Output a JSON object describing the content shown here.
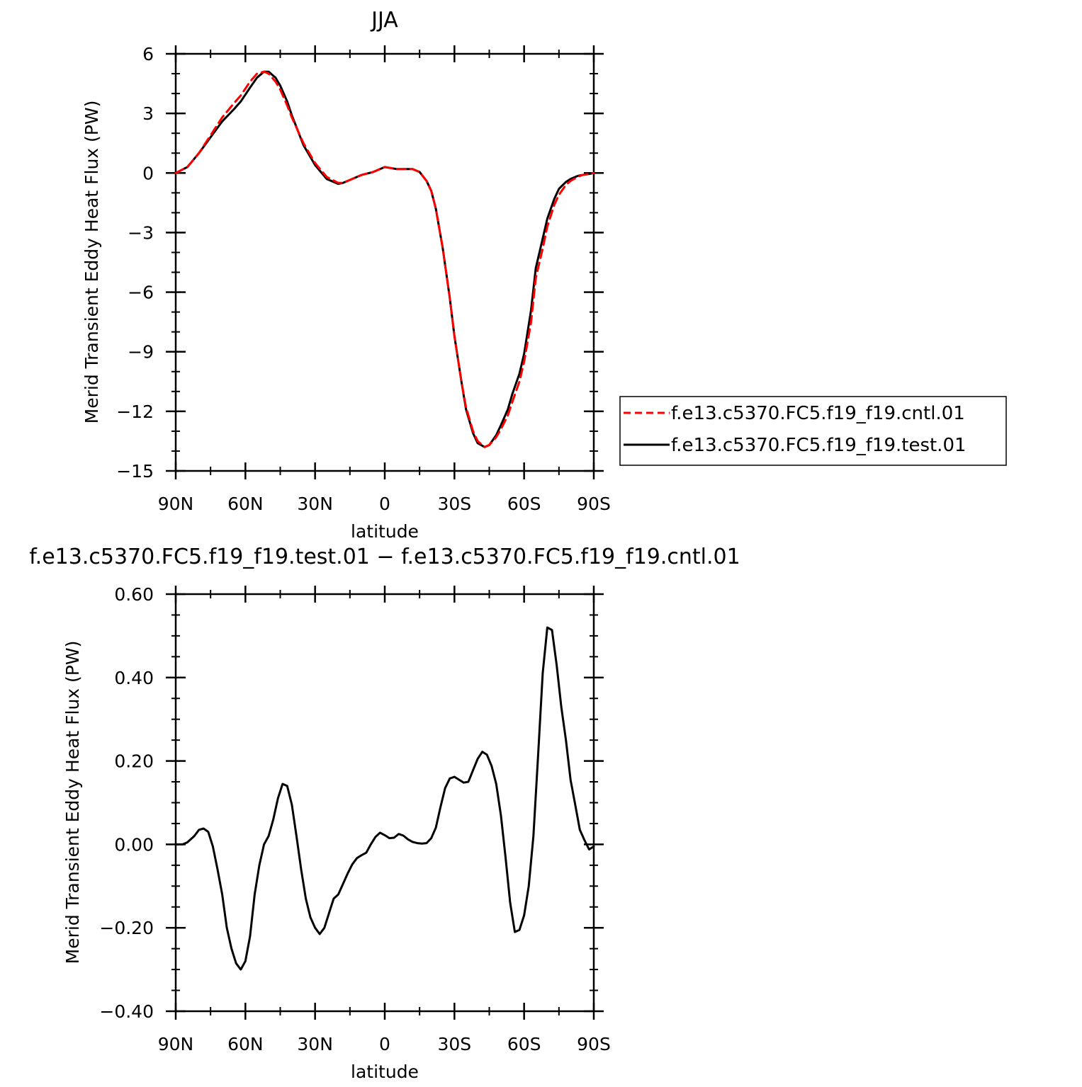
{
  "chart_data": [
    {
      "type": "line",
      "title": "JJA",
      "xlabel": "latitude",
      "ylabel": "Merid Transient Eddy Heat Flux (PW)",
      "xlim": [
        -90,
        90
      ],
      "ylim": [
        -15,
        6
      ],
      "x_ticks": [
        -90,
        -60,
        -30,
        0,
        30,
        60,
        90
      ],
      "x_tick_labels": [
        "90N",
        "60N",
        "30N",
        "0",
        "30S",
        "60S",
        "90S"
      ],
      "y_ticks": [
        6,
        3,
        0,
        -3,
        -6,
        -9,
        -12,
        -15
      ],
      "y_tick_labels": [
        "6",
        "3",
        "0",
        "−3",
        "−6",
        "−9",
        "−12",
        "−15"
      ],
      "legend_position": "right",
      "grid": false,
      "series": [
        {
          "name": "f.e13.c5370.FC5.f19_f19.cntl.01",
          "color": "#ff0000",
          "dash": "dashed",
          "x": [
            -90,
            -85,
            -80,
            -75,
            -70,
            -65,
            -62,
            -58,
            -55,
            -52,
            -50,
            -47,
            -45,
            -42,
            -40,
            -35,
            -30,
            -25,
            -20,
            -18,
            -15,
            -10,
            -5,
            0,
            5,
            10,
            12,
            15,
            18,
            20,
            22,
            25,
            28,
            30,
            33,
            35,
            38,
            40,
            43,
            45,
            48,
            50,
            53,
            55,
            58,
            60,
            63,
            65,
            68,
            70,
            73,
            75,
            78,
            80,
            83,
            85,
            88,
            90
          ],
          "y": [
            0,
            0.3,
            1.0,
            1.9,
            2.8,
            3.5,
            3.9,
            4.6,
            5.0,
            5.1,
            5.0,
            4.6,
            4.2,
            3.4,
            2.8,
            1.5,
            0.5,
            -0.2,
            -0.5,
            -0.5,
            -0.35,
            -0.1,
            0.05,
            0.3,
            0.2,
            0.2,
            0.2,
            0.05,
            -0.4,
            -0.9,
            -1.8,
            -3.8,
            -6.3,
            -8.2,
            -10.5,
            -11.8,
            -13.0,
            -13.5,
            -13.8,
            -13.7,
            -13.3,
            -12.9,
            -12.2,
            -11.5,
            -10.5,
            -9.5,
            -7.5,
            -5.3,
            -3.8,
            -2.7,
            -1.6,
            -1.1,
            -0.6,
            -0.4,
            -0.2,
            -0.1,
            -0.05,
            0
          ]
        },
        {
          "name": "f.e13.c5370.FC5.f19_f19.test.01",
          "color": "#000000",
          "dash": "solid",
          "x": [
            -90,
            -85,
            -80,
            -75,
            -70,
            -65,
            -62,
            -58,
            -55,
            -52,
            -50,
            -47,
            -45,
            -42,
            -40,
            -35,
            -30,
            -25,
            -20,
            -18,
            -15,
            -10,
            -5,
            0,
            5,
            10,
            12,
            15,
            18,
            20,
            22,
            25,
            28,
            30,
            33,
            35,
            38,
            40,
            43,
            45,
            48,
            50,
            53,
            55,
            58,
            60,
            63,
            65,
            68,
            70,
            73,
            75,
            78,
            80,
            83,
            85,
            88,
            90
          ],
          "y": [
            0,
            0.3,
            1.0,
            1.8,
            2.6,
            3.2,
            3.6,
            4.3,
            4.8,
            5.1,
            5.1,
            4.8,
            4.4,
            3.6,
            2.9,
            1.4,
            0.4,
            -0.3,
            -0.55,
            -0.5,
            -0.35,
            -0.1,
            0.05,
            0.3,
            0.2,
            0.2,
            0.2,
            0.05,
            -0.4,
            -0.9,
            -1.8,
            -3.8,
            -6.3,
            -8.2,
            -10.5,
            -11.9,
            -13.1,
            -13.6,
            -13.8,
            -13.7,
            -13.2,
            -12.7,
            -11.9,
            -11.1,
            -10.1,
            -9.1,
            -6.9,
            -4.8,
            -3.3,
            -2.3,
            -1.3,
            -0.8,
            -0.45,
            -0.3,
            -0.15,
            -0.1,
            -0.05,
            0
          ]
        }
      ]
    },
    {
      "type": "line",
      "title": "f.e13.c5370.FC5.f19_f19.test.01 − f.e13.c5370.FC5.f19_f19.cntl.01",
      "xlabel": "latitude",
      "ylabel": "Merid Transient Eddy Heat Flux (PW)",
      "xlim": [
        -90,
        90
      ],
      "ylim": [
        -0.4,
        0.6
      ],
      "x_ticks": [
        -90,
        -60,
        -30,
        0,
        30,
        60,
        90
      ],
      "x_tick_labels": [
        "90N",
        "60N",
        "30N",
        "0",
        "30S",
        "60S",
        "90S"
      ],
      "y_ticks": [
        0.6,
        0.4,
        0.2,
        0.0,
        -0.2,
        -0.4
      ],
      "y_tick_labels": [
        "0.60",
        "0.40",
        "0.20",
        "0.00",
        "−0.20",
        "−0.40"
      ],
      "grid": false,
      "series": [
        {
          "color": "#000000",
          "dash": "solid",
          "x": [
            -90,
            -87,
            -85,
            -82,
            -80,
            -78,
            -76,
            -74,
            -72,
            -70,
            -68,
            -66,
            -64,
            -62,
            -60,
            -58,
            -56,
            -54,
            -52,
            -50,
            -48,
            -46,
            -44,
            -42,
            -40,
            -38,
            -36,
            -34,
            -32,
            -30,
            -28,
            -26,
            -24,
            -22,
            -20,
            -18,
            -16,
            -14,
            -12,
            -10,
            -8,
            -6,
            -4,
            -2,
            0,
            2,
            4,
            6,
            8,
            10,
            12,
            14,
            16,
            18,
            20,
            22,
            24,
            26,
            28,
            30,
            32,
            34,
            36,
            38,
            40,
            42,
            44,
            46,
            48,
            50,
            52,
            54,
            56,
            58,
            60,
            62,
            64,
            66,
            68,
            70,
            72,
            74,
            76,
            78,
            80,
            82,
            84,
            86,
            88,
            90
          ],
          "y": [
            0.0,
            0.0,
            0.005,
            0.02,
            0.035,
            0.038,
            0.03,
            -0.005,
            -0.06,
            -0.12,
            -0.2,
            -0.25,
            -0.285,
            -0.3,
            -0.28,
            -0.22,
            -0.12,
            -0.05,
            0.0,
            0.02,
            0.06,
            0.11,
            0.145,
            0.14,
            0.095,
            0.02,
            -0.06,
            -0.13,
            -0.175,
            -0.2,
            -0.215,
            -0.2,
            -0.165,
            -0.13,
            -0.12,
            -0.095,
            -0.07,
            -0.048,
            -0.033,
            -0.026,
            -0.02,
            0.0,
            0.018,
            0.028,
            0.022,
            0.015,
            0.016,
            0.025,
            0.021,
            0.012,
            0.006,
            0.003,
            0.002,
            0.003,
            0.015,
            0.04,
            0.09,
            0.135,
            0.158,
            0.162,
            0.155,
            0.148,
            0.15,
            0.178,
            0.205,
            0.222,
            0.215,
            0.188,
            0.145,
            0.07,
            -0.03,
            -0.14,
            -0.21,
            -0.205,
            -0.17,
            -0.1,
            0.02,
            0.21,
            0.41,
            0.52,
            0.514,
            0.43,
            0.33,
            0.25,
            0.155,
            0.095,
            0.035,
            0.01,
            -0.012,
            -0.005
          ]
        }
      ]
    }
  ]
}
